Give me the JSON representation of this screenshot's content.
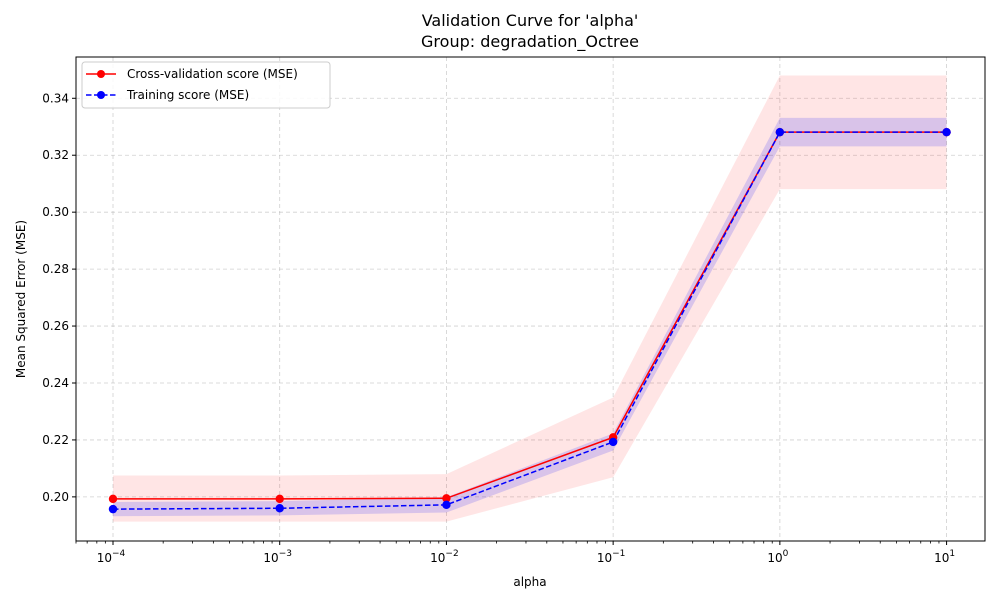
{
  "chart_data": {
    "type": "line",
    "title": "Validation Curve for 'alpha'",
    "subtitle": "Group: degradation_Octree",
    "xlabel": "alpha",
    "ylabel": "Mean Squared Error (MSE)",
    "xscale": "log",
    "xlim": [
      6e-05,
      17
    ],
    "ylim": [
      0.1845,
      0.3545
    ],
    "x": [
      0.0001,
      0.001,
      0.01,
      0.1,
      1,
      10
    ],
    "x_ticks": [
      {
        "value": 0.0001,
        "base": "10",
        "exp": "−4"
      },
      {
        "value": 0.001,
        "base": "10",
        "exp": "−3"
      },
      {
        "value": 0.01,
        "base": "10",
        "exp": "−2"
      },
      {
        "value": 0.1,
        "base": "10",
        "exp": "−1"
      },
      {
        "value": 1,
        "base": "10",
        "exp": "0"
      },
      {
        "value": 10,
        "base": "10",
        "exp": "1"
      }
    ],
    "y_ticks": [
      "0.20",
      "0.22",
      "0.24",
      "0.26",
      "0.28",
      "0.30",
      "0.32",
      "0.34"
    ],
    "grid": true,
    "legend_position": "top-left",
    "series": [
      {
        "name": "Cross-validation score (MSE)",
        "color": "#ff0000",
        "band_color": "#ff0000",
        "linestyle": "solid",
        "marker": "circle",
        "values": [
          0.1993,
          0.1993,
          0.1995,
          0.2209,
          0.3281,
          0.3281
        ],
        "lower": [
          0.1913,
          0.1913,
          0.1913,
          0.2069,
          0.3081,
          0.3081
        ],
        "upper": [
          0.2075,
          0.2075,
          0.208,
          0.2349,
          0.348,
          0.348
        ]
      },
      {
        "name": "Training score (MSE)",
        "color": "#0000ff",
        "band_color": "#0000ff",
        "linestyle": "dashed",
        "marker": "circle",
        "values": [
          0.1957,
          0.196,
          0.1972,
          0.2193,
          0.3281,
          0.3281
        ],
        "lower": [
          0.1932,
          0.1935,
          0.1945,
          0.2163,
          0.3231,
          0.3231
        ],
        "upper": [
          0.1982,
          0.1985,
          0.1999,
          0.2223,
          0.3331,
          0.3331
        ]
      }
    ]
  }
}
